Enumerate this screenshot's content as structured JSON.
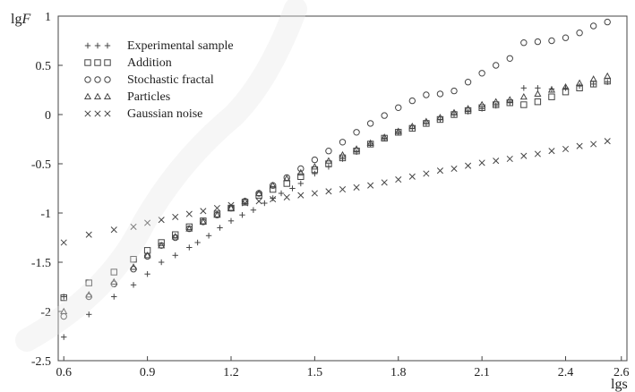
{
  "chart_data": {
    "type": "scatter",
    "xlabel": "lgs",
    "ylabel_prefix": "lg",
    "ylabel_var": "F",
    "xlim": [
      0.58,
      2.62
    ],
    "ylim": [
      -2.5,
      1.0
    ],
    "xticks": [
      "0.6",
      "0.9",
      "1.2",
      "1.5",
      "1.8",
      "2.1",
      "2.4",
      "2.6"
    ],
    "xtick_values": [
      0.6,
      0.9,
      1.2,
      1.5,
      1.8,
      2.1,
      2.4,
      2.6
    ],
    "yticks": [
      "1",
      "0.5",
      "0",
      "-0.5",
      "-1",
      "-1.5",
      "-2",
      "-2.5"
    ],
    "ytick_values": [
      1,
      0.5,
      0,
      -0.5,
      -1,
      -1.5,
      -2,
      -2.5
    ],
    "legend_position": "top-left",
    "grid": false,
    "series": [
      {
        "name": "Experimental sample",
        "marker": "plus",
        "color": "#444444",
        "points": [
          [
            0.6,
            -2.26
          ],
          [
            0.6,
            -1.85
          ],
          [
            0.69,
            -2.03
          ],
          [
            0.78,
            -1.85
          ],
          [
            0.85,
            -1.73
          ],
          [
            0.9,
            -1.62
          ],
          [
            0.95,
            -1.5
          ],
          [
            1.0,
            -1.43
          ],
          [
            1.05,
            -1.35
          ],
          [
            1.08,
            -1.3
          ],
          [
            1.12,
            -1.23
          ],
          [
            1.16,
            -1.15
          ],
          [
            1.2,
            -1.08
          ],
          [
            1.24,
            -1.02
          ],
          [
            1.28,
            -0.97
          ],
          [
            1.32,
            -0.9
          ],
          [
            1.35,
            -0.85
          ],
          [
            1.38,
            -0.8
          ],
          [
            1.42,
            -0.75
          ],
          [
            1.45,
            -0.7
          ],
          [
            1.5,
            -0.6
          ],
          [
            1.55,
            -0.53
          ],
          [
            1.6,
            -0.45
          ],
          [
            1.65,
            -0.38
          ],
          [
            1.7,
            -0.3
          ],
          [
            1.75,
            -0.24
          ],
          [
            1.8,
            -0.18
          ],
          [
            1.85,
            -0.14
          ],
          [
            1.9,
            -0.09
          ],
          [
            1.95,
            -0.05
          ],
          [
            2.0,
            0.0
          ],
          [
            2.05,
            0.03
          ],
          [
            2.1,
            0.06
          ],
          [
            2.15,
            0.09
          ],
          [
            2.2,
            0.12
          ],
          [
            2.25,
            0.27
          ],
          [
            2.3,
            0.27
          ],
          [
            2.35,
            0.26
          ],
          [
            2.4,
            0.27
          ],
          [
            2.45,
            0.29
          ],
          [
            2.5,
            0.31
          ],
          [
            2.55,
            0.33
          ]
        ]
      },
      {
        "name": "Addition",
        "marker": "square",
        "color": "#444444",
        "points": [
          [
            0.6,
            -1.86
          ],
          [
            0.69,
            -1.71
          ],
          [
            0.78,
            -1.6
          ],
          [
            0.85,
            -1.47
          ],
          [
            0.9,
            -1.38
          ],
          [
            0.95,
            -1.3
          ],
          [
            1.0,
            -1.22
          ],
          [
            1.05,
            -1.14
          ],
          [
            1.1,
            -1.08
          ],
          [
            1.15,
            -1.01
          ],
          [
            1.2,
            -0.95
          ],
          [
            1.25,
            -0.89
          ],
          [
            1.3,
            -0.82
          ],
          [
            1.35,
            -0.76
          ],
          [
            1.4,
            -0.7
          ],
          [
            1.45,
            -0.63
          ],
          [
            1.5,
            -0.56
          ],
          [
            1.55,
            -0.5
          ],
          [
            1.6,
            -0.44
          ],
          [
            1.65,
            -0.37
          ],
          [
            1.7,
            -0.3
          ],
          [
            1.75,
            -0.24
          ],
          [
            1.8,
            -0.18
          ],
          [
            1.85,
            -0.14
          ],
          [
            1.9,
            -0.09
          ],
          [
            1.95,
            -0.05
          ],
          [
            2.0,
            0.0
          ],
          [
            2.05,
            0.04
          ],
          [
            2.1,
            0.07
          ],
          [
            2.15,
            0.1
          ],
          [
            2.2,
            0.12
          ],
          [
            2.25,
            0.1
          ],
          [
            2.3,
            0.13
          ],
          [
            2.35,
            0.18
          ],
          [
            2.4,
            0.23
          ],
          [
            2.45,
            0.27
          ],
          [
            2.5,
            0.31
          ],
          [
            2.55,
            0.34
          ]
        ]
      },
      {
        "name": "Stochastic fractal",
        "marker": "circle",
        "color": "#444444",
        "points": [
          [
            0.6,
            -2.05
          ],
          [
            0.69,
            -1.85
          ],
          [
            0.78,
            -1.72
          ],
          [
            0.85,
            -1.57
          ],
          [
            0.9,
            -1.44
          ],
          [
            0.95,
            -1.33
          ],
          [
            1.0,
            -1.25
          ],
          [
            1.05,
            -1.16
          ],
          [
            1.1,
            -1.09
          ],
          [
            1.15,
            -1.02
          ],
          [
            1.2,
            -0.95
          ],
          [
            1.25,
            -0.88
          ],
          [
            1.3,
            -0.8
          ],
          [
            1.35,
            -0.72
          ],
          [
            1.4,
            -0.64
          ],
          [
            1.45,
            -0.55
          ],
          [
            1.5,
            -0.46
          ],
          [
            1.55,
            -0.37
          ],
          [
            1.6,
            -0.28
          ],
          [
            1.65,
            -0.18
          ],
          [
            1.7,
            -0.09
          ],
          [
            1.75,
            -0.01
          ],
          [
            1.8,
            0.07
          ],
          [
            1.85,
            0.14
          ],
          [
            1.9,
            0.2
          ],
          [
            1.95,
            0.21
          ],
          [
            2.0,
            0.24
          ],
          [
            2.05,
            0.33
          ],
          [
            2.1,
            0.42
          ],
          [
            2.15,
            0.5
          ],
          [
            2.2,
            0.57
          ],
          [
            2.25,
            0.73
          ],
          [
            2.3,
            0.74
          ],
          [
            2.35,
            0.75
          ],
          [
            2.4,
            0.78
          ],
          [
            2.45,
            0.83
          ],
          [
            2.5,
            0.9
          ],
          [
            2.55,
            0.94
          ]
        ]
      },
      {
        "name": "Particles",
        "marker": "triangle",
        "color": "#444444",
        "points": [
          [
            0.6,
            -2.0
          ],
          [
            0.69,
            -1.83
          ],
          [
            0.78,
            -1.7
          ],
          [
            0.85,
            -1.55
          ],
          [
            0.9,
            -1.43
          ],
          [
            0.95,
            -1.33
          ],
          [
            1.0,
            -1.24
          ],
          [
            1.05,
            -1.16
          ],
          [
            1.1,
            -1.09
          ],
          [
            1.15,
            -1.02
          ],
          [
            1.2,
            -0.95
          ],
          [
            1.25,
            -0.88
          ],
          [
            1.3,
            -0.8
          ],
          [
            1.35,
            -0.72
          ],
          [
            1.4,
            -0.65
          ],
          [
            1.45,
            -0.59
          ],
          [
            1.5,
            -0.53
          ],
          [
            1.55,
            -0.47
          ],
          [
            1.6,
            -0.41
          ],
          [
            1.65,
            -0.35
          ],
          [
            1.7,
            -0.29
          ],
          [
            1.75,
            -0.23
          ],
          [
            1.8,
            -0.17
          ],
          [
            1.85,
            -0.12
          ],
          [
            1.9,
            -0.07
          ],
          [
            1.95,
            -0.03
          ],
          [
            2.0,
            0.02
          ],
          [
            2.05,
            0.06
          ],
          [
            2.1,
            0.1
          ],
          [
            2.15,
            0.13
          ],
          [
            2.2,
            0.15
          ],
          [
            2.25,
            0.18
          ],
          [
            2.3,
            0.21
          ],
          [
            2.35,
            0.25
          ],
          [
            2.4,
            0.28
          ],
          [
            2.45,
            0.32
          ],
          [
            2.5,
            0.36
          ],
          [
            2.55,
            0.39
          ]
        ]
      },
      {
        "name": "Gaussian noise",
        "marker": "cross",
        "color": "#444444",
        "points": [
          [
            0.6,
            -1.3
          ],
          [
            0.69,
            -1.22
          ],
          [
            0.78,
            -1.17
          ],
          [
            0.85,
            -1.14
          ],
          [
            0.9,
            -1.1
          ],
          [
            0.95,
            -1.07
          ],
          [
            1.0,
            -1.04
          ],
          [
            1.05,
            -1.01
          ],
          [
            1.1,
            -0.98
          ],
          [
            1.15,
            -0.95
          ],
          [
            1.2,
            -0.92
          ],
          [
            1.25,
            -0.9
          ],
          [
            1.3,
            -0.88
          ],
          [
            1.35,
            -0.86
          ],
          [
            1.4,
            -0.84
          ],
          [
            1.45,
            -0.82
          ],
          [
            1.5,
            -0.8
          ],
          [
            1.55,
            -0.78
          ],
          [
            1.6,
            -0.76
          ],
          [
            1.65,
            -0.74
          ],
          [
            1.7,
            -0.72
          ],
          [
            1.75,
            -0.69
          ],
          [
            1.8,
            -0.66
          ],
          [
            1.85,
            -0.63
          ],
          [
            1.9,
            -0.6
          ],
          [
            1.95,
            -0.57
          ],
          [
            2.0,
            -0.55
          ],
          [
            2.05,
            -0.52
          ],
          [
            2.1,
            -0.49
          ],
          [
            2.15,
            -0.47
          ],
          [
            2.2,
            -0.45
          ],
          [
            2.25,
            -0.42
          ],
          [
            2.3,
            -0.4
          ],
          [
            2.35,
            -0.37
          ],
          [
            2.4,
            -0.35
          ],
          [
            2.45,
            -0.32
          ],
          [
            2.5,
            -0.3
          ],
          [
            2.55,
            -0.27
          ]
        ]
      }
    ]
  }
}
